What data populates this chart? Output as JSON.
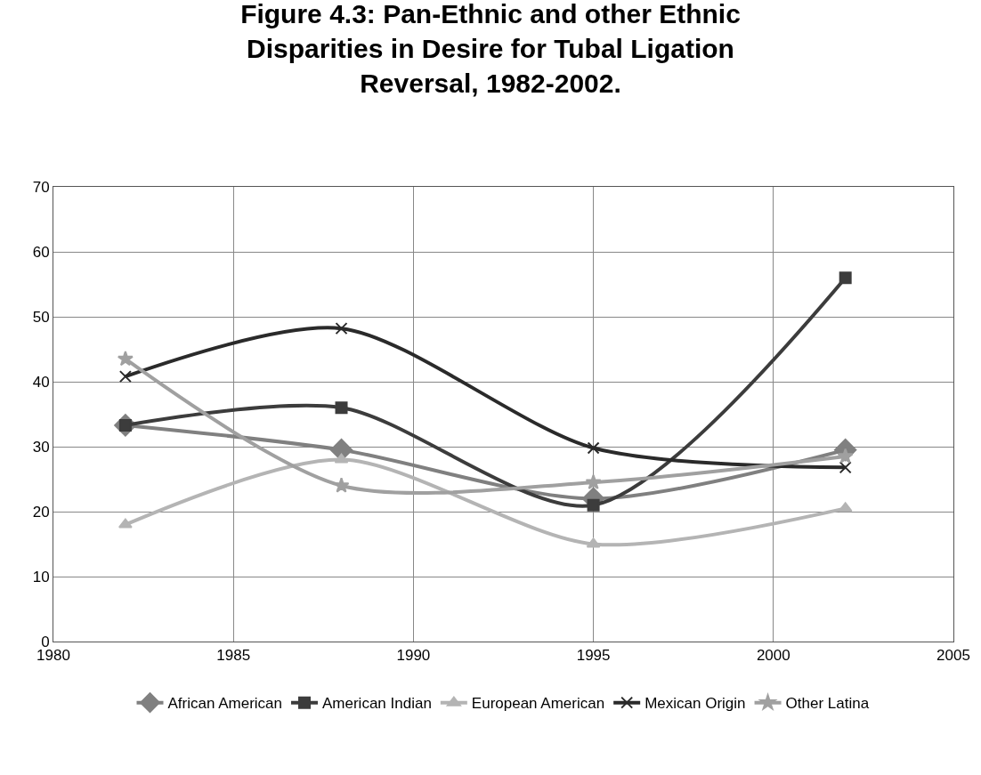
{
  "chart_data": {
    "type": "line",
    "title": "Figure 4.3: Pan-Ethnic and other Ethnic Disparities in Desire for Tubal Ligation Reversal, 1982-2002.",
    "x": [
      1982,
      1988,
      1995,
      2002
    ],
    "series": [
      {
        "name": "African American",
        "color": "#808080",
        "marker": "diamond",
        "values": [
          33.3,
          29.5,
          22,
          29.5
        ]
      },
      {
        "name": "American Indian",
        "color": "#3c3c3c",
        "marker": "square",
        "values": [
          33.3,
          36,
          21,
          56
        ]
      },
      {
        "name": "European American",
        "color": "#b4b4b4",
        "marker": "triangle",
        "values": [
          18,
          28,
          15,
          20.5
        ]
      },
      {
        "name": "Mexican Origin",
        "color": "#2a2a2a",
        "marker": "cross",
        "values": [
          40.8,
          48.2,
          29.8,
          26.8
        ]
      },
      {
        "name": "Other Latina",
        "color": "#a0a0a0",
        "marker": "star",
        "values": [
          43.5,
          24,
          24.5,
          28.5
        ]
      }
    ],
    "xlim": [
      1980,
      2005
    ],
    "xticks": [
      1980,
      1985,
      1990,
      1995,
      2000,
      2005
    ],
    "ylim": [
      0,
      70
    ],
    "yticks": [
      0,
      10,
      20,
      30,
      40,
      50,
      60,
      70
    ],
    "grid": true,
    "legend": "bottom",
    "line_style": "solid"
  }
}
